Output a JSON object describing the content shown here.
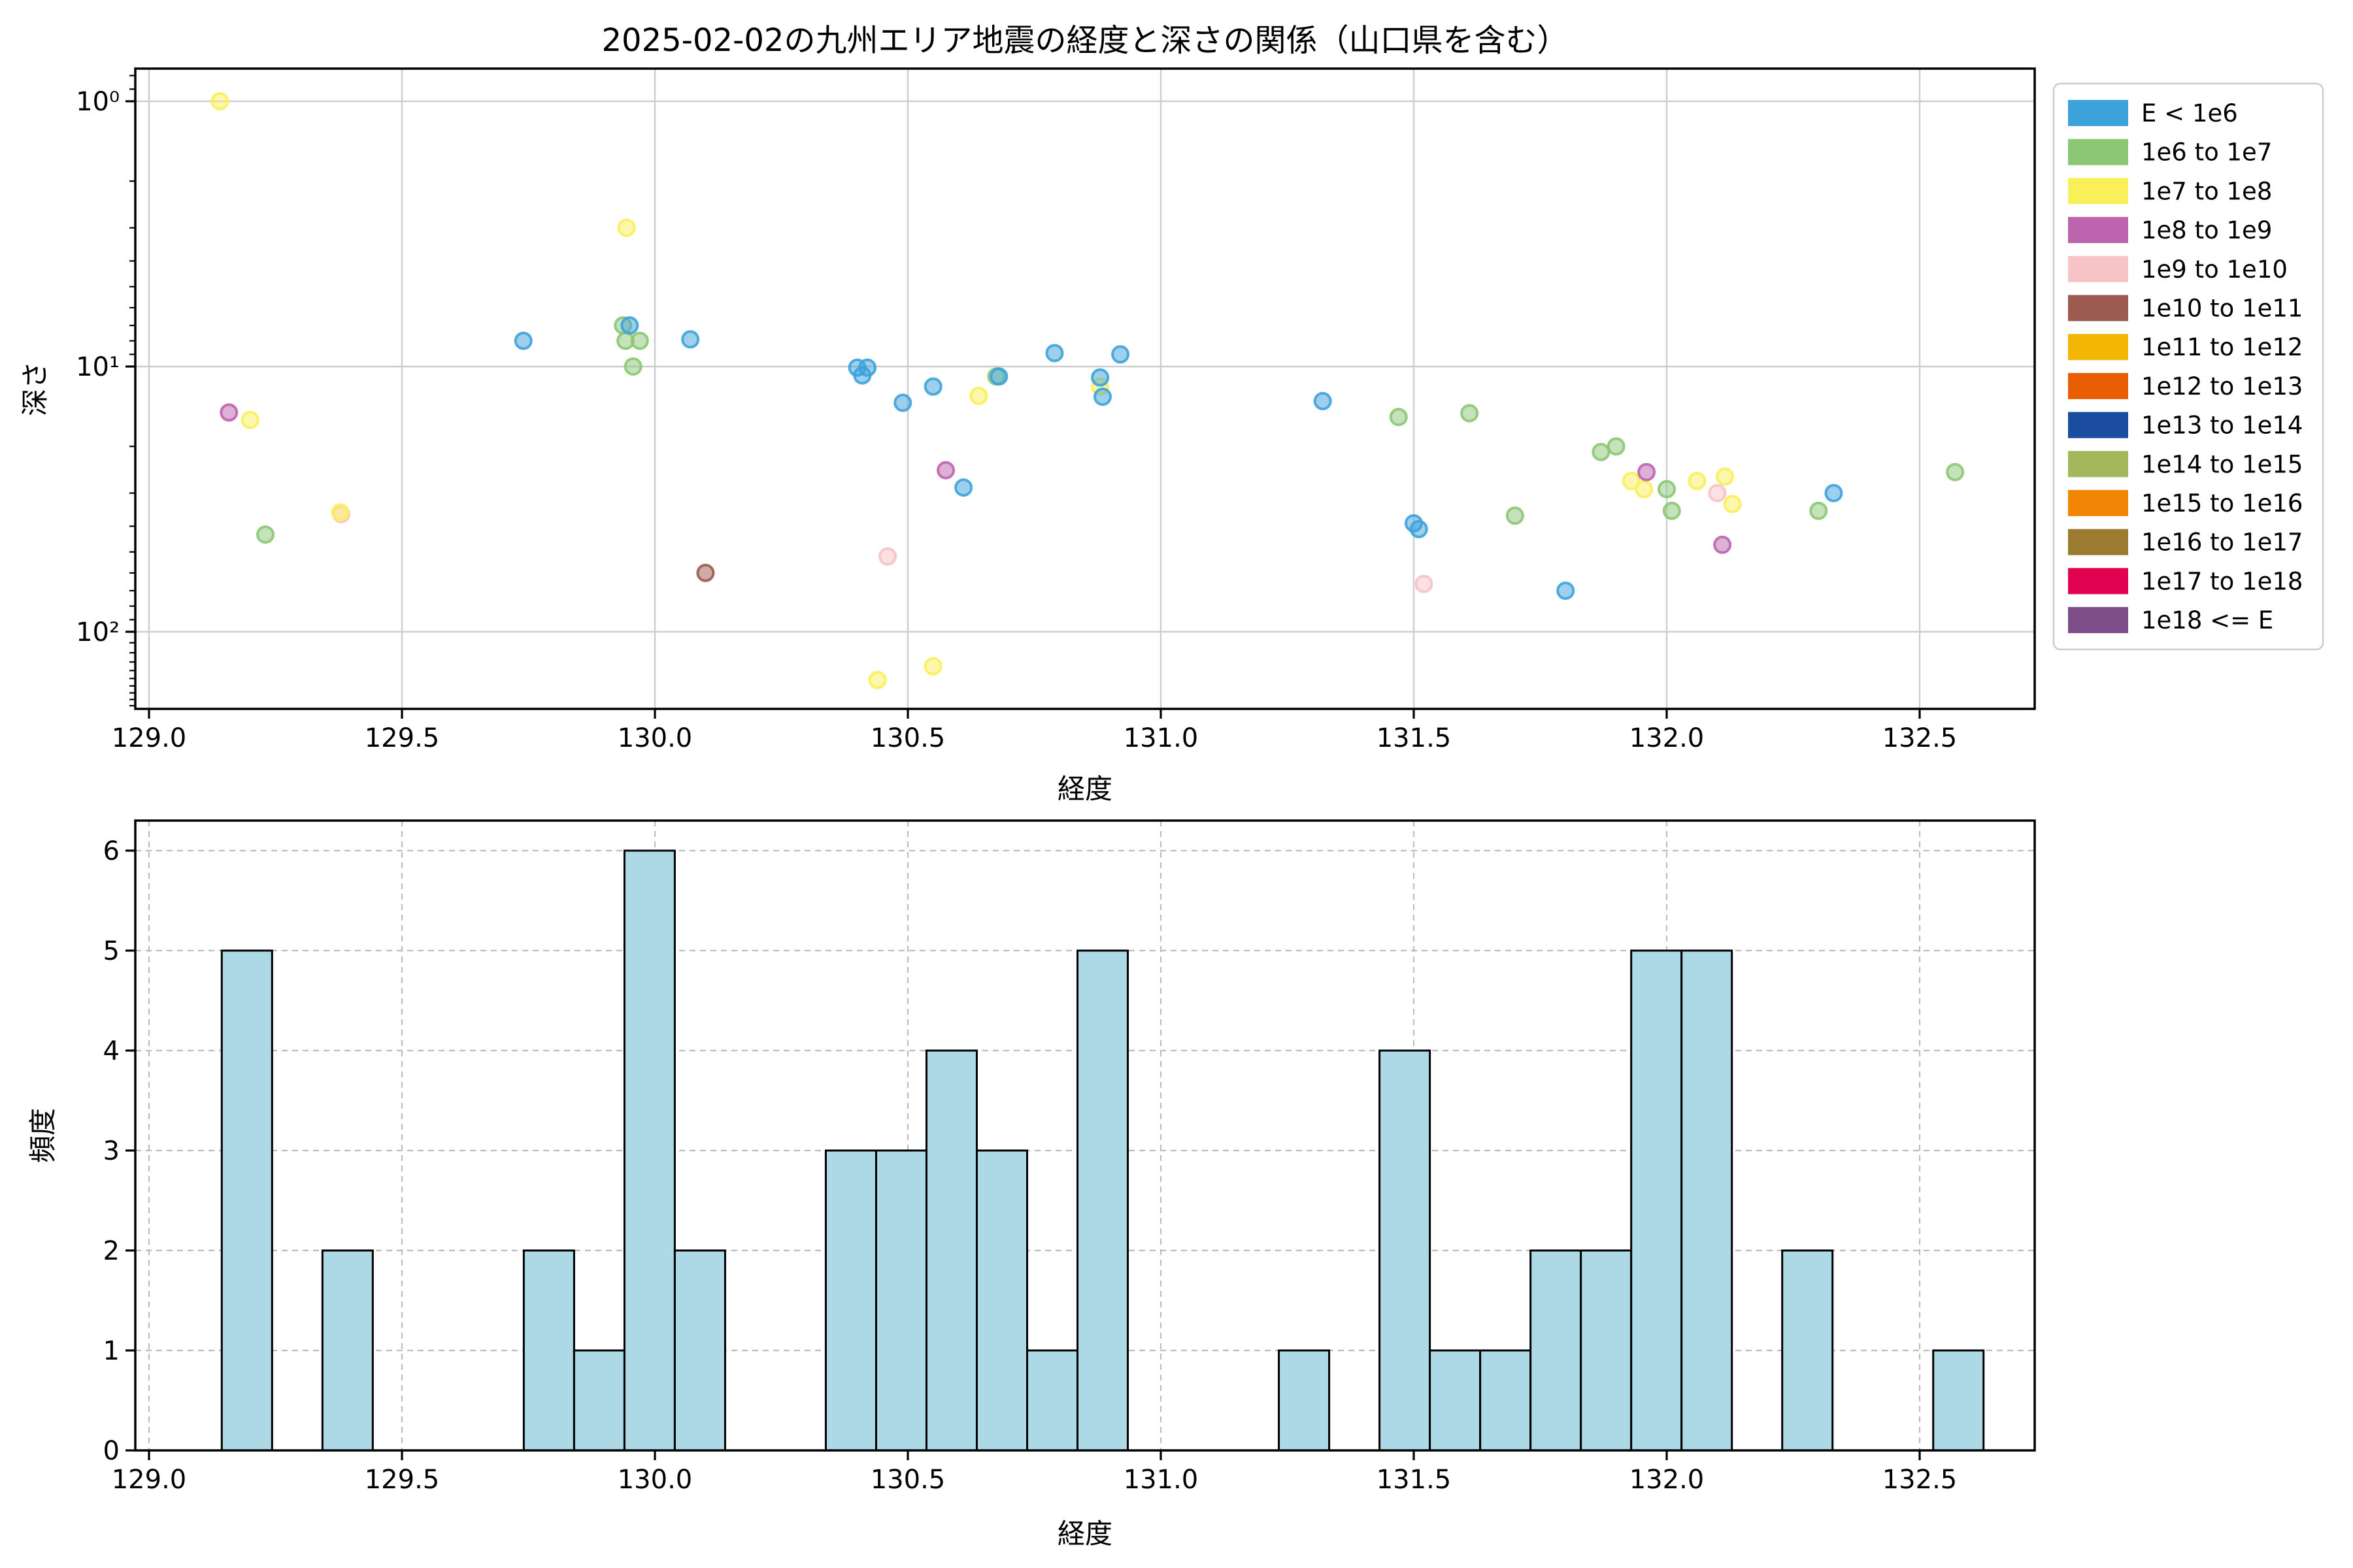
{
  "title": "2025-02-02の九州エリア地震の経度と深さの関係（山口県を含む）",
  "scatter_plot": {
    "xlabel": "経度",
    "ylabel": "深さ",
    "x_ticks": [
      "129.0",
      "129.5",
      "130.0",
      "130.5",
      "131.0",
      "131.5",
      "132.0",
      "132.5"
    ],
    "x_tick_values": [
      129.0,
      129.5,
      130.0,
      130.5,
      131.0,
      131.5,
      132.0,
      132.5
    ],
    "y_tick_labels": [
      "10⁰",
      "10¹",
      "10²"
    ],
    "y_tick_values": [
      1,
      10,
      100
    ]
  },
  "histogram_plot": {
    "xlabel": "経度",
    "ylabel": "頻度",
    "x_ticks": [
      "129.0",
      "129.5",
      "130.0",
      "130.5",
      "131.0",
      "131.5",
      "132.0",
      "132.5"
    ],
    "x_tick_values": [
      129.0,
      129.5,
      130.0,
      130.5,
      131.0,
      131.5,
      132.0,
      132.5
    ],
    "y_ticks": [
      "0",
      "1",
      "2",
      "3",
      "4",
      "5",
      "6"
    ],
    "y_tick_values": [
      0,
      1,
      2,
      3,
      4,
      5,
      6
    ],
    "bar_color": "#ADD8E6"
  },
  "legend": {
    "entries": [
      {
        "label": "E < 1e6",
        "color": "#3DA2DB"
      },
      {
        "label": "1e6 to 1e7",
        "color": "#8CC776"
      },
      {
        "label": "1e7 to 1e8",
        "color": "#F9F059"
      },
      {
        "label": "1e8 to 1e9",
        "color": "#BC64AE"
      },
      {
        "label": "1e9 to 1e10",
        "color": "#F6C3C7"
      },
      {
        "label": "1e10 to 1e11",
        "color": "#9C5A51"
      },
      {
        "label": "1e11 to 1e12",
        "color": "#F3B605"
      },
      {
        "label": "1e12 to 1e13",
        "color": "#E95D04"
      },
      {
        "label": "1e13 to 1e14",
        "color": "#1A4C9F"
      },
      {
        "label": "1e14 to 1e15",
        "color": "#A4B75A"
      },
      {
        "label": "1e15 to 1e16",
        "color": "#F28503"
      },
      {
        "label": "1e16 to 1e17",
        "color": "#9A7B2F"
      },
      {
        "label": "1e17 to 1e18",
        "color": "#E20350"
      },
      {
        "label": "1e18 <= E",
        "color": "#7D4D89"
      }
    ]
  },
  "chart_data": [
    {
      "type": "scatter",
      "title": "2025-02-02の九州エリア地震の経度と深さの関係（山口県を含む）",
      "xlabel": "経度",
      "ylabel": "深さ",
      "x_range": [
        128.97,
        132.73
      ],
      "y_scale": "log",
      "y_inverted": true,
      "y_range_depth": [
        0.75,
        197
      ],
      "grid": "solid",
      "legend_position": "upper right outside",
      "series": [
        {
          "name": "E < 1e6",
          "color": "#3DA2DB",
          "points": [
            [
              129.74,
              8.0
            ],
            [
              129.95,
              7.0
            ],
            [
              130.07,
              7.9
            ],
            [
              130.4,
              10.1
            ],
            [
              130.42,
              10.1
            ],
            [
              130.41,
              10.8
            ],
            [
              130.49,
              13.7
            ],
            [
              130.55,
              11.9
            ],
            [
              130.61,
              28.6
            ],
            [
              130.68,
              10.9
            ],
            [
              130.79,
              8.9
            ],
            [
              130.88,
              11.0
            ],
            [
              130.885,
              13.0
            ],
            [
              130.92,
              9.0
            ],
            [
              131.32,
              13.5
            ],
            [
              131.5,
              39
            ],
            [
              131.51,
              41
            ],
            [
              131.8,
              70
            ],
            [
              132.33,
              30
            ]
          ]
        },
        {
          "name": "1e6 to 1e7",
          "color": "#8CC776",
          "points": [
            [
              129.23,
              43
            ],
            [
              129.937,
              7.0
            ],
            [
              129.942,
              8.0
            ],
            [
              129.97,
              8.0
            ],
            [
              129.957,
              10.0
            ],
            [
              130.675,
              10.9
            ],
            [
              131.47,
              15.5
            ],
            [
              131.61,
              15.0
            ],
            [
              131.7,
              36.5
            ],
            [
              131.87,
              21
            ],
            [
              131.9,
              20
            ],
            [
              132.0,
              29
            ],
            [
              132.01,
              35
            ],
            [
              132.3,
              35
            ],
            [
              132.57,
              25
            ]
          ]
        },
        {
          "name": "1e7 to 1e8",
          "color": "#F9F059",
          "points": [
            [
              129.14,
              1.0
            ],
            [
              129.2,
              15.9
            ],
            [
              129.378,
              35.5
            ],
            [
              129.944,
              3.0
            ],
            [
              130.44,
              152
            ],
            [
              130.55,
              135
            ],
            [
              130.64,
              12.9
            ],
            [
              130.88,
              11.9
            ],
            [
              131.93,
              27
            ],
            [
              131.955,
              29
            ],
            [
              132.06,
              27
            ],
            [
              132.115,
              26
            ],
            [
              132.13,
              33
            ]
          ]
        },
        {
          "name": "1e8 to 1e9",
          "color": "#BC64AE",
          "points": [
            [
              129.158,
              14.9
            ],
            [
              130.575,
              24.6
            ],
            [
              131.96,
              25
            ],
            [
              132.11,
              47
            ]
          ]
        },
        {
          "name": "1e9 to 1e10",
          "color": "#F6C3C7",
          "points": [
            [
              129.38,
              36
            ],
            [
              130.46,
              52
            ],
            [
              131.52,
              66
            ],
            [
              132.1,
              30
            ]
          ]
        },
        {
          "name": "1e10 to 1e11",
          "color": "#9C5A51",
          "points": [
            [
              130.1,
              60
            ]
          ]
        }
      ]
    },
    {
      "type": "histogram",
      "xlabel": "経度",
      "ylabel": "頻度",
      "x_range": [
        128.97,
        132.73
      ],
      "ylim": [
        0,
        6.3
      ],
      "grid": "dashed",
      "bar_color": "#ADD8E6",
      "bin_start": 129.1438,
      "bin_width": 0.0995,
      "counts": [
        5,
        0,
        2,
        0,
        0,
        0,
        2,
        1,
        6,
        2,
        0,
        0,
        3,
        3,
        4,
        3,
        1,
        5,
        0,
        0,
        0,
        1,
        0,
        4,
        1,
        1,
        2,
        2,
        5,
        5,
        0,
        2,
        0,
        0,
        1
      ]
    }
  ]
}
